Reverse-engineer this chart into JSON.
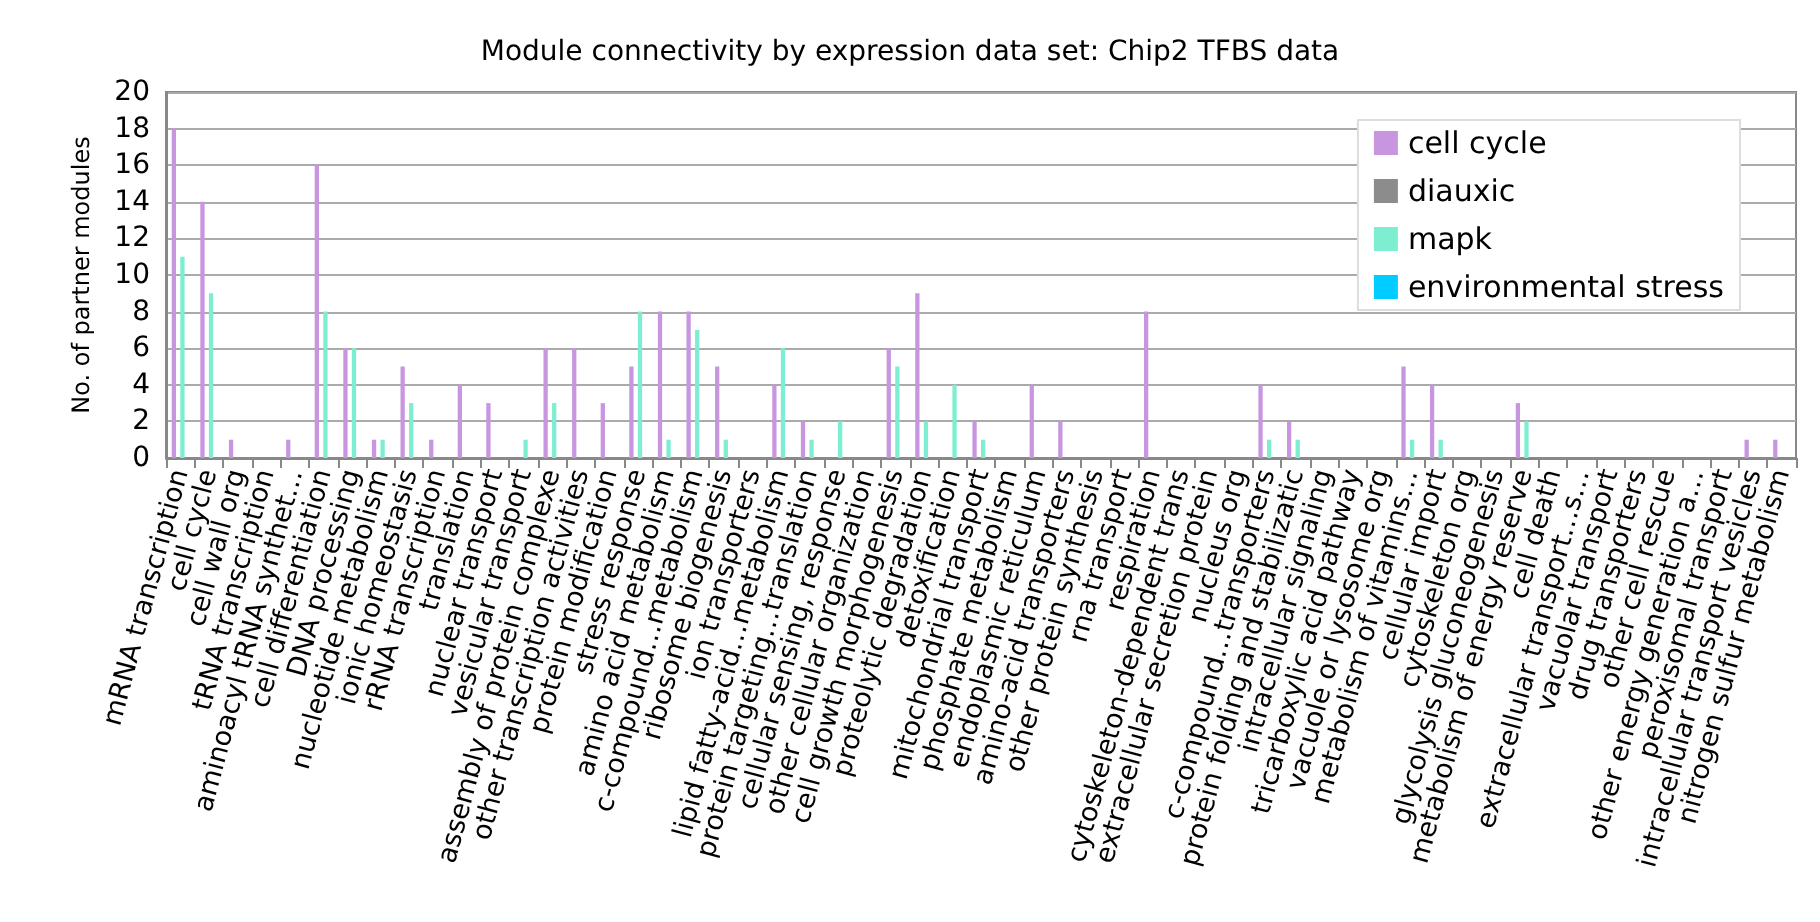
{
  "chart_data": {
    "type": "bar",
    "title": "Module connectivity by expression data set: Chip2 TFBS data",
    "ylabel": "No. of partner modules",
    "categories": [
      "mRNA transcription",
      "cell cycle",
      "cell wall org",
      "tRNA transcription",
      "aminoacyl tRNA synthet…",
      "cell differentiation",
      "DNA processing",
      "nucleotide metabolism",
      "ionic homeostasis",
      "rRNA transcription",
      "translation",
      "nuclear transport",
      "vesicular transport",
      "assembly of protein complexe",
      "other transcription activities",
      "protein modification",
      "stress response",
      "amino acid metabolism",
      "c-compound…metabolism",
      "ribosome biogenesis",
      "ion transporters",
      "lipid fatty-acid…metabolism",
      "protein targeting…translation",
      "cellular sensing, response",
      "other cellular organization",
      "cell growth morphogenesis",
      "proteolytic degradation",
      "detoxification",
      "mitochondrial transport",
      "phosphate metabolism",
      "endoplasmic reticulum",
      "amino-acid transporters",
      "other protein synthesis",
      "rna transport",
      "respiration",
      "cytoskeleton-dependent trans",
      "extracellular secretion protein",
      "nucleus org",
      "c-compound…transporters",
      "protein folding and stabilizatic",
      "intracellular signaling",
      "tricarboxylic acid pathway",
      "vacuole or lysosome org",
      "metabolism of vitamins…",
      "cellular import",
      "cytoskeleton org",
      "glycolysis gluconeogenesis",
      "metabolism of energy reserve",
      "cell death",
      "extracellular transport…s…",
      "vacuolar transport",
      "drug transporters",
      "other cell rescue",
      "other energy generation a…",
      "peroxisomal transport",
      "intracellular transport vesicles",
      "nitrogen sulfur metabolism"
    ],
    "series": [
      {
        "name": "cell cycle",
        "color": "#c896e0",
        "values": [
          18,
          14,
          1,
          0,
          1,
          16,
          6,
          1,
          5,
          1,
          4,
          3,
          0,
          6,
          6,
          3,
          5,
          8,
          8,
          5,
          0,
          4,
          2,
          0,
          0,
          6,
          9,
          0,
          2,
          0,
          4,
          2,
          0,
          0,
          8,
          0,
          0,
          0,
          4,
          2,
          0,
          0,
          0,
          5,
          4,
          0,
          0,
          3,
          0,
          0,
          0,
          0,
          0,
          0,
          0,
          1,
          1
        ]
      },
      {
        "name": "diauxic",
        "color": "#8c8c8c",
        "values": [
          0,
          0,
          0,
          0,
          0,
          0,
          0,
          0,
          0,
          0,
          0,
          0,
          0,
          0,
          0,
          0,
          0,
          0,
          0,
          0,
          0,
          0,
          0,
          0,
          0,
          0,
          0,
          0,
          0,
          0,
          0,
          0,
          0,
          0,
          0,
          0,
          0,
          0,
          0,
          0,
          0,
          0,
          0,
          0,
          0,
          0,
          0,
          0,
          0,
          0,
          0,
          0,
          0,
          0,
          0,
          0,
          0
        ]
      },
      {
        "name": "mapk",
        "color": "#7eeed2",
        "values": [
          11,
          9,
          0,
          0,
          0,
          8,
          6,
          1,
          3,
          0,
          0,
          0,
          1,
          3,
          0,
          0,
          8,
          1,
          7,
          1,
          0,
          6,
          1,
          2,
          0,
          5,
          2,
          4,
          1,
          0,
          0,
          0,
          0,
          0,
          0,
          0,
          0,
          0,
          1,
          1,
          0,
          0,
          0,
          1,
          1,
          0,
          0,
          2,
          0,
          0,
          0,
          0,
          0,
          0,
          0,
          0,
          0
        ]
      },
      {
        "name": "environmental stress",
        "color": "#00ccff",
        "values": [
          0,
          0,
          0,
          0,
          0,
          0,
          0,
          0,
          0,
          0,
          0,
          0,
          0,
          0,
          0,
          0,
          0,
          0,
          0,
          0,
          0,
          0,
          0,
          0,
          0,
          0,
          0,
          0,
          0,
          0,
          0,
          0,
          0,
          0,
          0,
          0,
          0,
          0,
          0,
          0,
          0,
          0,
          0,
          0,
          0,
          0,
          0,
          0,
          0,
          0,
          0,
          0,
          0,
          0,
          0,
          0,
          0
        ]
      }
    ],
    "ylim": [
      0,
      20
    ],
    "yticks": [
      0,
      2,
      4,
      6,
      8,
      10,
      12,
      14,
      16,
      18,
      20
    ],
    "grid": "y",
    "legend": "top right"
  }
}
